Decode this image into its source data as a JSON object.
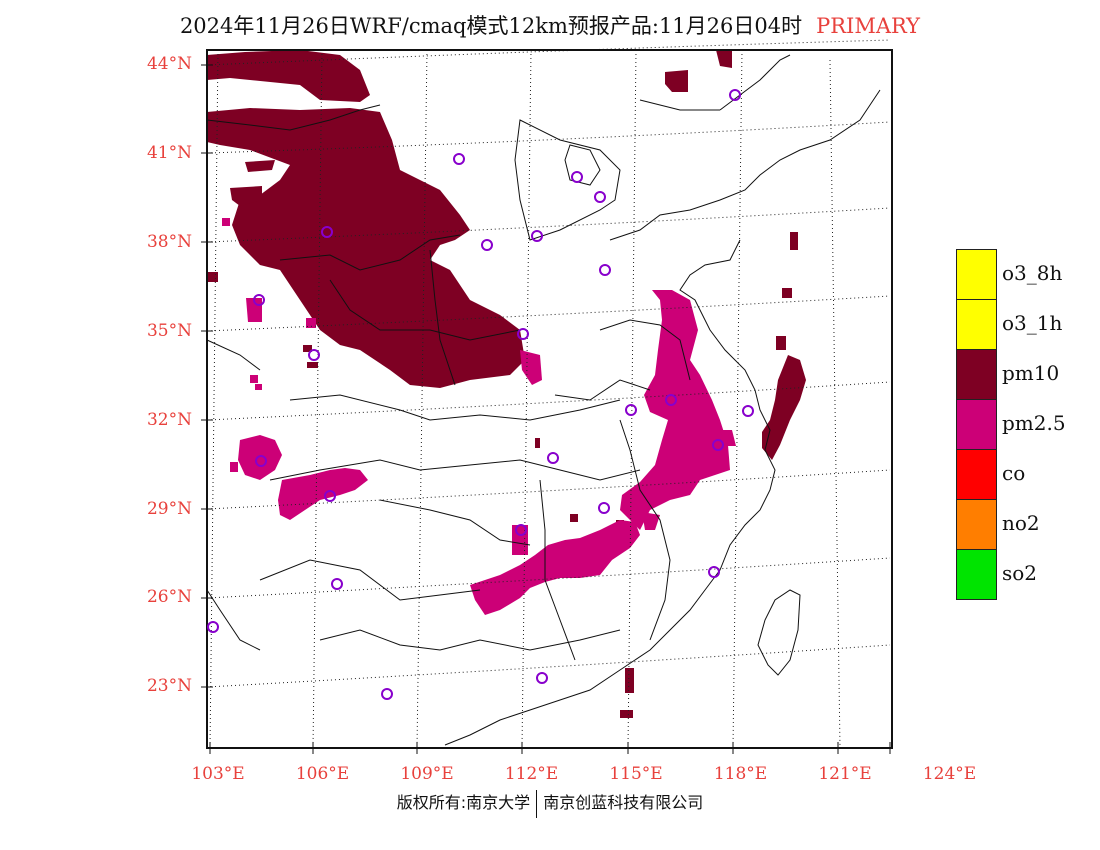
{
  "header": {
    "title": "2024年11月26日WRF/cmaq模式12km预报产品:11月26日04时",
    "primary": "PRIMARY"
  },
  "axes": {
    "lat_labels": [
      {
        "label": "44°N",
        "lat": 44
      },
      {
        "label": "41°N",
        "lat": 41
      },
      {
        "label": "38°N",
        "lat": 38
      },
      {
        "label": "35°N",
        "lat": 35
      },
      {
        "label": "32°N",
        "lat": 32
      },
      {
        "label": "29°N",
        "lat": 29
      },
      {
        "label": "26°N",
        "lat": 26
      },
      {
        "label": "23°N",
        "lat": 23
      }
    ],
    "lon_labels": [
      {
        "label": "103°E",
        "lon": 103
      },
      {
        "label": "106°E",
        "lon": 106
      },
      {
        "label": "109°E",
        "lon": 109
      },
      {
        "label": "112°E",
        "lon": 112
      },
      {
        "label": "115°E",
        "lon": 115
      },
      {
        "label": "118°E",
        "lon": 118
      },
      {
        "label": "121°E",
        "lon": 121
      },
      {
        "label": "124°E",
        "lon": 124
      }
    ],
    "label_color": "#e8413c"
  },
  "legend": [
    {
      "label": "o3_8h",
      "color": "#ffff00"
    },
    {
      "label": "o3_1h",
      "color": "#ffff00"
    },
    {
      "label": "pm10",
      "color": "#7e0023"
    },
    {
      "label": "pm2.5",
      "color": "#cc0077"
    },
    {
      "label": "co",
      "color": "#ff0000"
    },
    {
      "label": "no2",
      "color": "#ff7e00"
    },
    {
      "label": "so2",
      "color": "#00e400"
    }
  ],
  "colors": {
    "pm10": "#7e0023",
    "pm25": "#cc0077",
    "station": "#8800cc"
  },
  "footer": {
    "left": "版权所有:南京大学",
    "right": "南京创蓝科技有限公司"
  }
}
